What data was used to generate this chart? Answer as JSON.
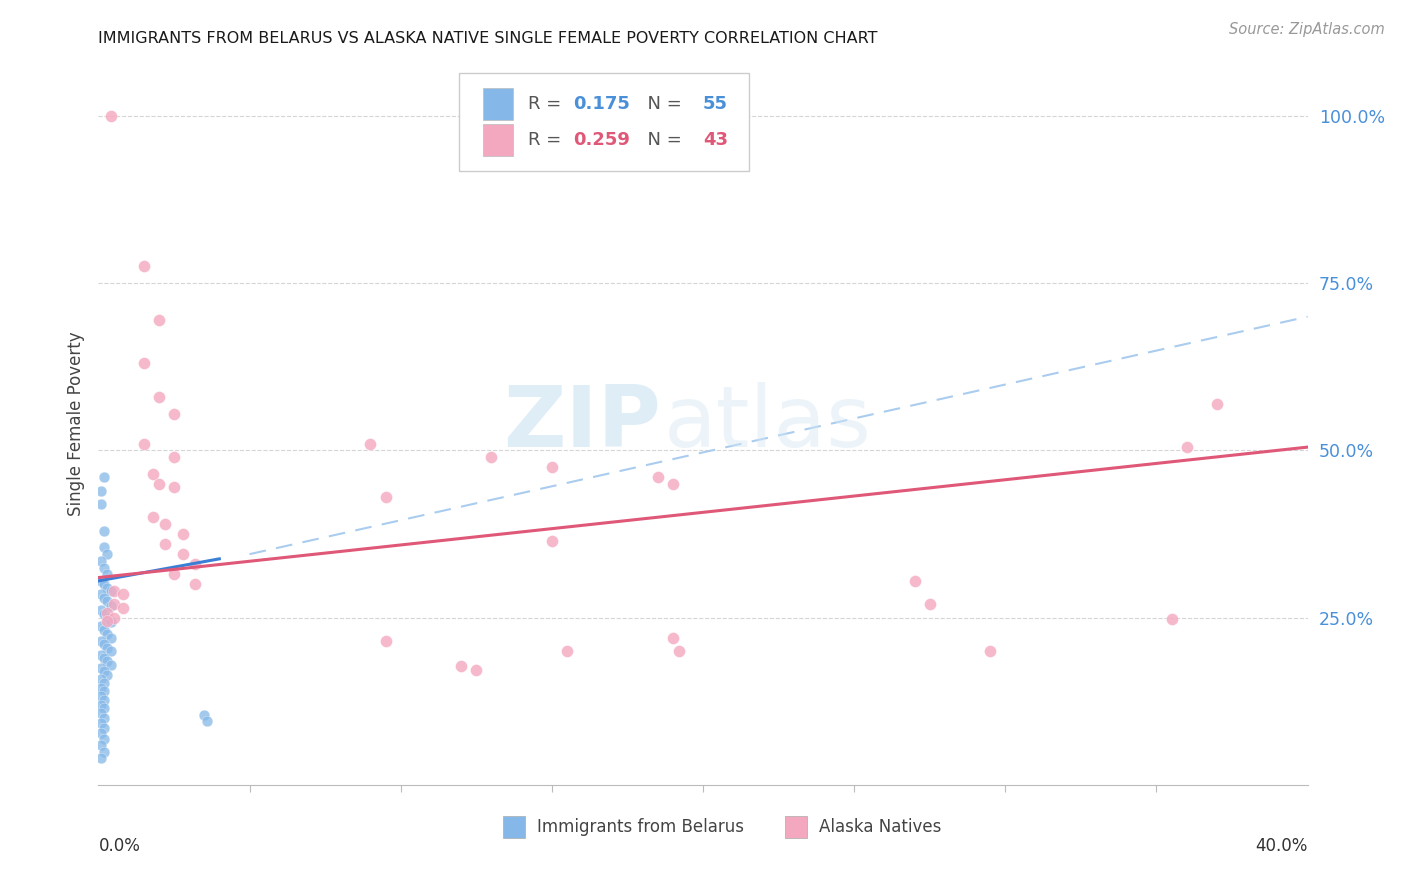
{
  "title": "IMMIGRANTS FROM BELARUS VS ALASKA NATIVE SINGLE FEMALE POVERTY CORRELATION CHART",
  "source": "Source: ZipAtlas.com",
  "ylabel": "Single Female Poverty",
  "ytick_labels": [
    "25.0%",
    "50.0%",
    "75.0%",
    "100.0%"
  ],
  "ytick_values": [
    0.25,
    0.5,
    0.75,
    1.0
  ],
  "xlim": [
    0.0,
    0.4
  ],
  "ylim": [
    0.0,
    1.08
  ],
  "watermark_zip": "ZIP",
  "watermark_atlas": "atlas",
  "color_blue": "#85b8e8",
  "color_pink": "#f4a8bf",
  "color_blue_line": "#3a7fd5",
  "color_pink_line": "#e05878",
  "color_blue_dash": "#aaccee",
  "blue_line_x0": 0.0,
  "blue_line_y0": 0.305,
  "blue_line_x1": 0.04,
  "blue_line_y1": 0.338,
  "pink_line_x0": 0.0,
  "pink_line_y0": 0.31,
  "pink_line_x1": 0.4,
  "pink_line_y1": 0.505,
  "dash_line_x0": 0.05,
  "dash_line_y0": 0.345,
  "dash_line_x1": 0.4,
  "dash_line_y1": 0.7,
  "blue_points": [
    [
      0.001,
      0.44
    ],
    [
      0.002,
      0.46
    ],
    [
      0.001,
      0.42
    ],
    [
      0.002,
      0.38
    ],
    [
      0.002,
      0.355
    ],
    [
      0.003,
      0.345
    ],
    [
      0.001,
      0.335
    ],
    [
      0.002,
      0.325
    ],
    [
      0.003,
      0.315
    ],
    [
      0.001,
      0.305
    ],
    [
      0.002,
      0.3
    ],
    [
      0.003,
      0.295
    ],
    [
      0.004,
      0.29
    ],
    [
      0.001,
      0.285
    ],
    [
      0.002,
      0.28
    ],
    [
      0.003,
      0.275
    ],
    [
      0.004,
      0.268
    ],
    [
      0.001,
      0.262
    ],
    [
      0.002,
      0.256
    ],
    [
      0.003,
      0.25
    ],
    [
      0.004,
      0.244
    ],
    [
      0.001,
      0.238
    ],
    [
      0.002,
      0.232
    ],
    [
      0.003,
      0.226
    ],
    [
      0.004,
      0.22
    ],
    [
      0.001,
      0.215
    ],
    [
      0.002,
      0.21
    ],
    [
      0.003,
      0.205
    ],
    [
      0.004,
      0.2
    ],
    [
      0.001,
      0.195
    ],
    [
      0.002,
      0.19
    ],
    [
      0.003,
      0.185
    ],
    [
      0.004,
      0.18
    ],
    [
      0.001,
      0.175
    ],
    [
      0.002,
      0.17
    ],
    [
      0.003,
      0.165
    ],
    [
      0.001,
      0.158
    ],
    [
      0.002,
      0.152
    ],
    [
      0.001,
      0.145
    ],
    [
      0.002,
      0.14
    ],
    [
      0.001,
      0.133
    ],
    [
      0.002,
      0.127
    ],
    [
      0.001,
      0.12
    ],
    [
      0.002,
      0.115
    ],
    [
      0.001,
      0.107
    ],
    [
      0.002,
      0.1
    ],
    [
      0.001,
      0.092
    ],
    [
      0.002,
      0.085
    ],
    [
      0.001,
      0.077
    ],
    [
      0.002,
      0.068
    ],
    [
      0.001,
      0.06
    ],
    [
      0.002,
      0.05
    ],
    [
      0.001,
      0.04
    ],
    [
      0.035,
      0.105
    ],
    [
      0.036,
      0.095
    ]
  ],
  "pink_points": [
    [
      0.004,
      1.0
    ],
    [
      0.015,
      0.775
    ],
    [
      0.02,
      0.695
    ],
    [
      0.015,
      0.63
    ],
    [
      0.02,
      0.58
    ],
    [
      0.025,
      0.555
    ],
    [
      0.015,
      0.51
    ],
    [
      0.025,
      0.49
    ],
    [
      0.018,
      0.465
    ],
    [
      0.02,
      0.45
    ],
    [
      0.025,
      0.445
    ],
    [
      0.018,
      0.4
    ],
    [
      0.022,
      0.39
    ],
    [
      0.028,
      0.375
    ],
    [
      0.022,
      0.36
    ],
    [
      0.028,
      0.345
    ],
    [
      0.032,
      0.33
    ],
    [
      0.025,
      0.315
    ],
    [
      0.032,
      0.3
    ],
    [
      0.005,
      0.29
    ],
    [
      0.008,
      0.285
    ],
    [
      0.005,
      0.27
    ],
    [
      0.008,
      0.265
    ],
    [
      0.003,
      0.257
    ],
    [
      0.005,
      0.25
    ],
    [
      0.003,
      0.245
    ],
    [
      0.13,
      0.49
    ],
    [
      0.15,
      0.475
    ],
    [
      0.185,
      0.46
    ],
    [
      0.19,
      0.45
    ],
    [
      0.09,
      0.51
    ],
    [
      0.095,
      0.43
    ],
    [
      0.15,
      0.365
    ],
    [
      0.155,
      0.2
    ],
    [
      0.095,
      0.215
    ],
    [
      0.19,
      0.22
    ],
    [
      0.192,
      0.2
    ],
    [
      0.27,
      0.305
    ],
    [
      0.275,
      0.27
    ],
    [
      0.355,
      0.248
    ],
    [
      0.37,
      0.57
    ],
    [
      0.295,
      0.2
    ],
    [
      0.36,
      0.505
    ],
    [
      0.12,
      0.178
    ],
    [
      0.125,
      0.172
    ]
  ]
}
